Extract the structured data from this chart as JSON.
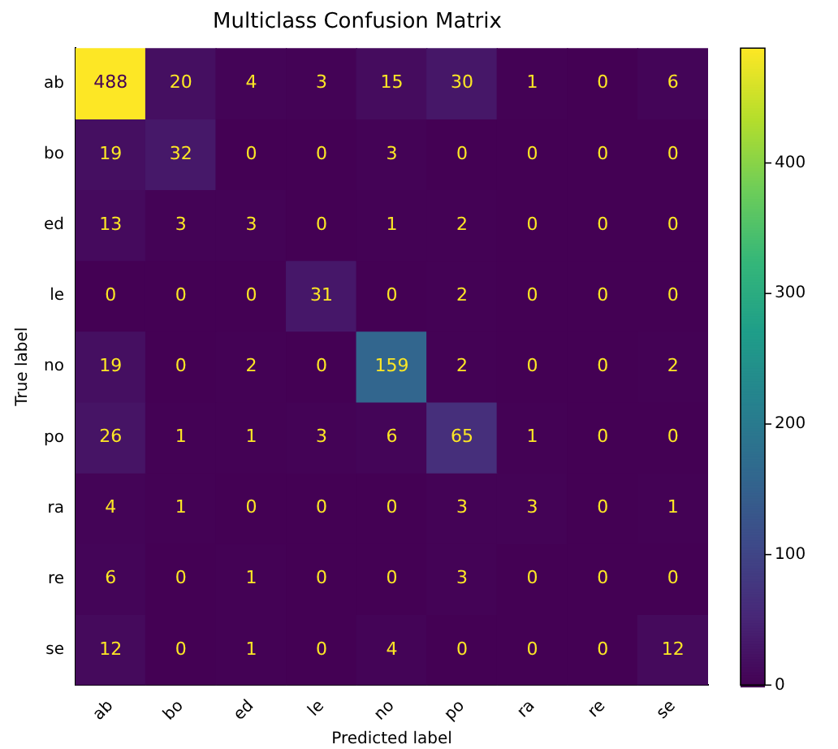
{
  "chart_data": {
    "type": "heatmap",
    "title": "Multiclass Confusion Matrix",
    "xlabel": "Predicted label",
    "ylabel": "True label",
    "categories": [
      "ab",
      "bo",
      "ed",
      "le",
      "no",
      "po",
      "ra",
      "re",
      "se"
    ],
    "y_categories": [
      "ab",
      "bo",
      "ed",
      "le",
      "no",
      "po",
      "ra",
      "re",
      "se"
    ],
    "cells": [
      [
        488,
        20,
        4,
        3,
        15,
        30,
        1,
        0,
        6
      ],
      [
        19,
        32,
        0,
        0,
        3,
        0,
        0,
        0,
        0
      ],
      [
        13,
        3,
        3,
        0,
        1,
        2,
        0,
        0,
        0
      ],
      [
        0,
        0,
        0,
        31,
        0,
        2,
        0,
        0,
        0
      ],
      [
        19,
        0,
        2,
        0,
        159,
        2,
        0,
        0,
        2
      ],
      [
        26,
        1,
        1,
        3,
        6,
        65,
        1,
        0,
        0
      ],
      [
        4,
        1,
        0,
        0,
        0,
        3,
        3,
        0,
        1
      ],
      [
        6,
        0,
        1,
        0,
        0,
        3,
        0,
        0,
        0
      ],
      [
        12,
        0,
        1,
        0,
        4,
        0,
        0,
        0,
        12
      ]
    ],
    "clim": [
      0,
      488
    ],
    "cticks": [
      0,
      100,
      200,
      300,
      400
    ],
    "data_labels": true
  }
}
